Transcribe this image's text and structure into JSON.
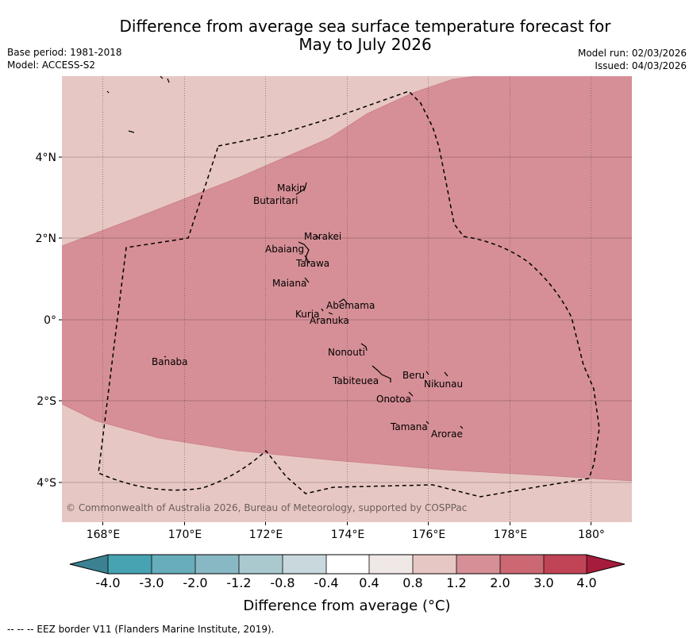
{
  "header": {
    "title_line1": "Difference from average sea surface temperature forecast for",
    "title_line2": "May to July 2026",
    "base_period": "Base period: 1981-2018",
    "model": "Model: ACCESS-S2",
    "model_run": "Model run: 02/03/2026",
    "issued": "Issued: 04/03/2026"
  },
  "map": {
    "copyright": "© Commonwealth of Australia 2026, Bureau of Meteorology, supported by COSPPac",
    "lon_ticks": [
      "168°E",
      "170°E",
      "172°E",
      "174°E",
      "176°E",
      "178°E",
      "180°"
    ],
    "lat_ticks": [
      "4°N",
      "2°N",
      "0°",
      "2°S",
      "4°S"
    ],
    "places": [
      {
        "name": "Makin"
      },
      {
        "name": "Butaritari"
      },
      {
        "name": "Marakei"
      },
      {
        "name": "Abaiang"
      },
      {
        "name": "Tarawa"
      },
      {
        "name": "Maiana"
      },
      {
        "name": "Abemama"
      },
      {
        "name": "Kuria"
      },
      {
        "name": "Aranuka"
      },
      {
        "name": "Nonouti"
      },
      {
        "name": "Banaba"
      },
      {
        "name": "Beru"
      },
      {
        "name": "Nikunau"
      },
      {
        "name": "Tabiteuea"
      },
      {
        "name": "Onotoa"
      },
      {
        "name": "Tamana"
      },
      {
        "name": "Arorae"
      }
    ]
  },
  "colorbar": {
    "ticks": [
      "-4.0",
      "-3.0",
      "-2.0",
      "-1.2",
      "-0.8",
      "-0.4",
      "0.4",
      "0.8",
      "1.2",
      "2.0",
      "3.0",
      "4.0"
    ],
    "colors": [
      "#3b8191",
      "#47a2b2",
      "#67adbb",
      "#88b8c3",
      "#a9c9cf",
      "#c9d8dd",
      "#ffffff",
      "#f0e8e6",
      "#e7c7c3",
      "#d68f96",
      "#cb6872",
      "#c04456",
      "#a71b3c"
    ],
    "label": "Difference from average (°C)"
  },
  "footnote": "--  --  -- EEZ border V11 (Flanders Marine Institute, 2019)."
}
